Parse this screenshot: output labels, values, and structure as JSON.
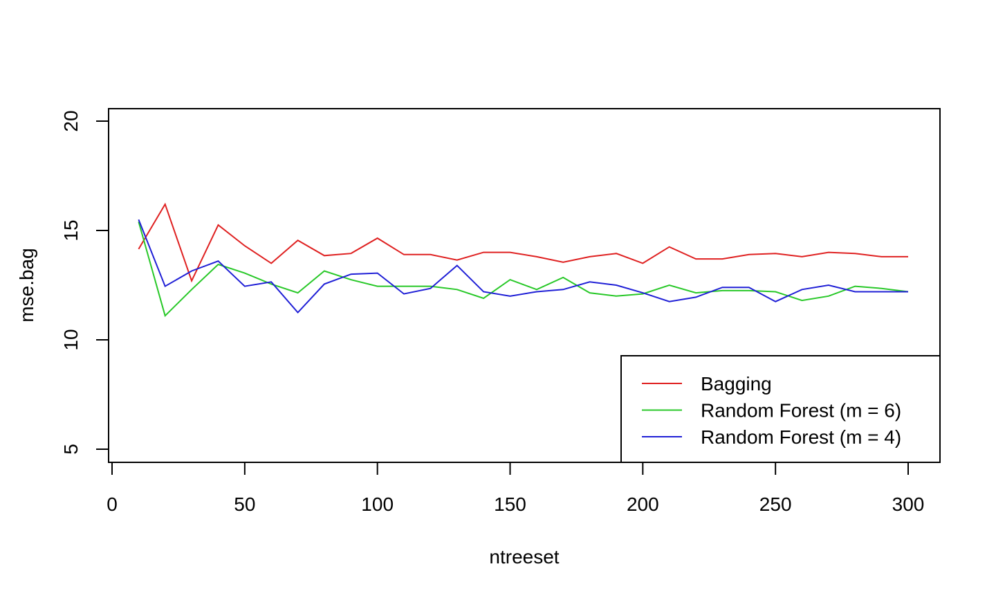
{
  "chart_data": {
    "type": "line",
    "title": "",
    "xlabel": "ntreeset",
    "ylabel": "mse.bag",
    "xlim": [
      0,
      300
    ],
    "ylim": [
      5,
      20
    ],
    "x_ticks": [
      0,
      50,
      100,
      150,
      200,
      250,
      300
    ],
    "y_ticks": [
      5,
      10,
      15,
      20
    ],
    "grid": false,
    "legend_position": "bottom-right",
    "x": [
      10,
      20,
      30,
      40,
      50,
      60,
      70,
      80,
      90,
      100,
      110,
      120,
      130,
      140,
      150,
      160,
      170,
      180,
      190,
      200,
      210,
      220,
      230,
      240,
      250,
      260,
      270,
      280,
      290,
      300
    ],
    "series": [
      {
        "name": "Bagging",
        "color": "#df2020",
        "values": [
          14.15,
          16.2,
          12.7,
          15.25,
          14.3,
          13.5,
          14.55,
          13.85,
          13.95,
          14.65,
          13.9,
          13.9,
          13.65,
          14.0,
          14.0,
          13.8,
          13.55,
          13.8,
          13.95,
          13.5,
          14.25,
          13.7,
          13.7,
          13.9,
          13.95,
          13.8,
          14.0,
          13.95,
          13.8,
          13.8
        ]
      },
      {
        "name": "Random Forest (m = 6)",
        "color": "#28c828",
        "values": [
          15.4,
          11.1,
          12.3,
          13.45,
          13.05,
          12.55,
          12.15,
          13.15,
          12.75,
          12.45,
          12.45,
          12.45,
          12.3,
          11.9,
          12.75,
          12.3,
          12.85,
          12.15,
          12.0,
          12.1,
          12.5,
          12.15,
          12.25,
          12.25,
          12.2,
          11.8,
          12.0,
          12.45,
          12.35,
          12.2
        ]
      },
      {
        "name": "Random Forest (m = 4)",
        "color": "#1f1fd6",
        "values": [
          15.5,
          12.45,
          13.15,
          13.6,
          12.45,
          12.65,
          11.25,
          12.55,
          13.0,
          13.05,
          12.1,
          12.35,
          13.4,
          12.2,
          12.0,
          12.2,
          12.3,
          12.65,
          12.5,
          12.15,
          11.75,
          11.95,
          12.4,
          12.4,
          11.75,
          12.3,
          12.5,
          12.2,
          12.2,
          12.2
        ]
      }
    ]
  }
}
